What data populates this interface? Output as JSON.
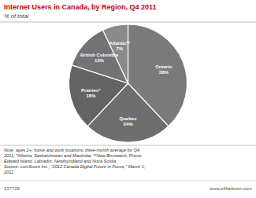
{
  "chart_data": {
    "type": "pie",
    "title": "Internet Users in Canada, by Region, Q4 2011",
    "subtitle": "% of total",
    "categories": [
      "Ontario",
      "Quebec",
      "Prairies*",
      "British Columbia",
      "Atlantic**"
    ],
    "values": [
      38,
      24,
      18,
      13,
      7
    ],
    "value_labels": [
      "38%",
      "24%",
      "18%",
      "13%",
      "7%"
    ],
    "data_labels": true,
    "colors": [
      "#7a7a7a",
      "#6e6e6e",
      "#636363",
      "#737373",
      "#8a8a8a"
    ],
    "annotations": [
      "Note: ages 2+; home and work locations; three-month average for Q4\n2011; *Alberta, Saskatchewan and Manitoba; **New Brunswick, Prince\nEdward Island, Labrador, Newfoundland and Nova Scotia\nSource: comScore Inc., “2012 Canada Digital Future in Focus,” March 1,\n2012",
      "137725",
      "www.eMarketer.com"
    ]
  }
}
